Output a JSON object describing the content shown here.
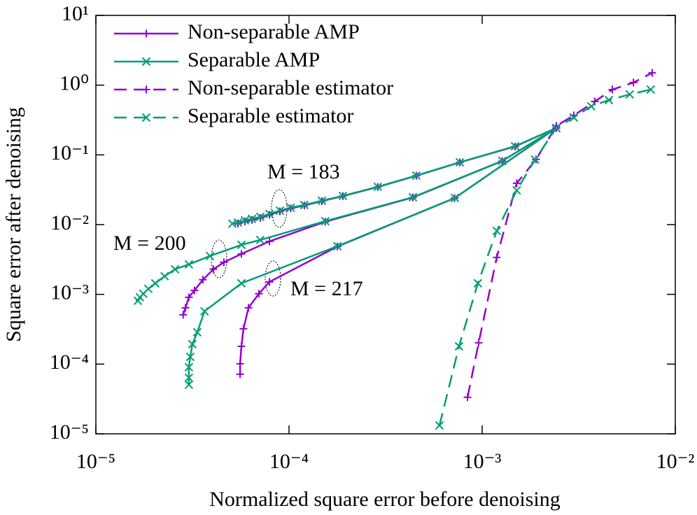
{
  "chart_data": {
    "type": "line",
    "xlabel": "Normalized square error before denoising",
    "ylabel": "Square error after denoising",
    "log_x": true,
    "log_y": true,
    "xlim": [
      1e-05,
      0.01
    ],
    "ylim": [
      1e-05,
      10
    ],
    "xticks": [
      {
        "value": 1e-05,
        "label": "10⁻⁵"
      },
      {
        "value": 0.0001,
        "label": "10⁻⁴"
      },
      {
        "value": 0.001,
        "label": "10⁻³"
      },
      {
        "value": 0.01,
        "label": "10⁻²"
      }
    ],
    "yticks": [
      {
        "value": 1e-05,
        "label": "10⁻⁵"
      },
      {
        "value": 0.0001,
        "label": "10⁻⁴"
      },
      {
        "value": 0.001,
        "label": "10⁻³"
      },
      {
        "value": 0.01,
        "label": "10⁻²"
      },
      {
        "value": 0.1,
        "label": "10⁻¹"
      },
      {
        "value": 1,
        "label": "10⁰"
      },
      {
        "value": 10,
        "label": "10¹"
      }
    ],
    "legend": "upper left",
    "annotations": [
      "M = 183",
      "M = 200",
      "M = 217"
    ],
    "series": [
      {
        "name": "Non-separable AMP",
        "color": "#9400d3",
        "dashed": false,
        "marker": "+",
        "curves": [
          {
            "x": [
              5.44e-05,
              5.91e-05,
              6.43e-05,
              7.1e-05,
              7.92e-05,
              8.97e-05,
              0.000102,
              0.00012,
              0.000148,
              0.00019,
              0.000288,
              0.000456,
              0.000766,
              0.00148,
              0.00242
            ],
            "y": [
              0.0104,
              0.0111,
              0.0117,
              0.0125,
              0.0138,
              0.0155,
              0.0171,
              0.0188,
              0.0217,
              0.0256,
              0.0346,
              0.0502,
              0.078,
              0.132,
              0.243
            ]
          },
          {
            "x": [
              2.83e-05,
              2.91e-05,
              3.03e-05,
              3.24e-05,
              3.58e-05,
              4.06e-05,
              4.6e-05,
              5.67e-05,
              7.92e-05,
              0.000154,
              0.000438,
              0.00127,
              0.00242
            ],
            "y": [
              0.000509,
              0.000641,
              0.000908,
              0.00114,
              0.00162,
              0.00229,
              0.00288,
              0.0038,
              0.00575,
              0.011,
              0.0245,
              0.0815,
              0.243
            ]
          },
          {
            "x": [
              5.58e-05,
              5.58e-05,
              5.67e-05,
              5.81e-05,
              6.17e-05,
              6.98e-05,
              7.92e-05,
              0.000178,
              0.00072,
              0.00242
            ],
            "y": [
              7.16e-05,
              0.000101,
              0.00018,
              0.000321,
              0.000641,
              0.00102,
              0.00151,
              0.00485,
              0.024,
              0.243
            ]
          }
        ]
      },
      {
        "name": "Separable AMP",
        "color": "#009e73",
        "dashed": false,
        "marker": "x",
        "curves": [
          {
            "x": [
              5.09e-05,
              5.44e-05,
              5.91e-05,
              6.43e-05,
              7.1e-05,
              7.92e-05,
              8.97e-05,
              0.000102,
              0.00012,
              0.000148,
              0.00019,
              0.000288,
              0.000456,
              0.000766,
              0.00148,
              0.00242
            ],
            "y": [
              0.0103,
              0.0107,
              0.0115,
              0.0121,
              0.0129,
              0.0142,
              0.0159,
              0.0175,
              0.0191,
              0.022,
              0.0258,
              0.0349,
              0.0505,
              0.0783,
              0.133,
              0.243
            ]
          },
          {
            "x": [
              1.65e-05,
              1.69e-05,
              1.76e-05,
              1.87e-05,
              2.03e-05,
              2.27e-05,
              2.57e-05,
              3.03e-05,
              3.9e-05,
              5.67e-05,
              7.1e-05,
              0.000154,
              0.000438,
              0.00127,
              0.00242
            ],
            "y": [
              0.000809,
              0.000908,
              0.00102,
              0.0012,
              0.00144,
              0.00182,
              0.00229,
              0.00269,
              0.00355,
              0.00513,
              0.00603,
              0.0112,
              0.0247,
              0.082,
              0.243
            ]
          },
          {
            "x": [
              3.03e-05,
              3.03e-05,
              3.03e-05,
              3.08e-05,
              3.16e-05,
              3.35e-05,
              3.65e-05,
              5.67e-05,
              0.000178,
              0.000723,
              0.00242
            ],
            "y": [
              5.06e-05,
              6.37e-05,
              9.02e-05,
              0.000127,
              0.000193,
              0.000286,
              0.000572,
              0.00144,
              0.0049,
              0.0241,
              0.243
            ]
          }
        ]
      },
      {
        "name": "Non-separable estimator",
        "color": "#9400d3",
        "dashed": true,
        "marker": "+",
        "curves": [
          {
            "x": [
              0.00084,
              0.000959,
              0.00119,
              0.00151,
              0.0019,
              0.00242,
              0.00298,
              0.00383,
              0.00472,
              0.00607,
              0.00759
            ],
            "y": [
              3.34e-05,
              0.000202,
              0.00339,
              0.0392,
              0.0859,
              0.26,
              0.368,
              0.583,
              0.865,
              1.09,
              1.5
            ]
          }
        ]
      },
      {
        "name": "Separable estimator",
        "color": "#009e73",
        "dashed": true,
        "marker": "x",
        "curves": [
          {
            "x": [
              0.000601,
              0.000759,
              0.00095,
              0.00119,
              0.00151,
              0.00188,
              0.00242,
              0.00298,
              0.00367,
              0.00453,
              0.00581,
              0.00746
            ],
            "y": [
              1.32e-05,
              0.00018,
              0.00144,
              0.00814,
              0.031,
              0.0859,
              0.243,
              0.344,
              0.497,
              0.611,
              0.736,
              0.865
            ]
          }
        ]
      }
    ]
  }
}
